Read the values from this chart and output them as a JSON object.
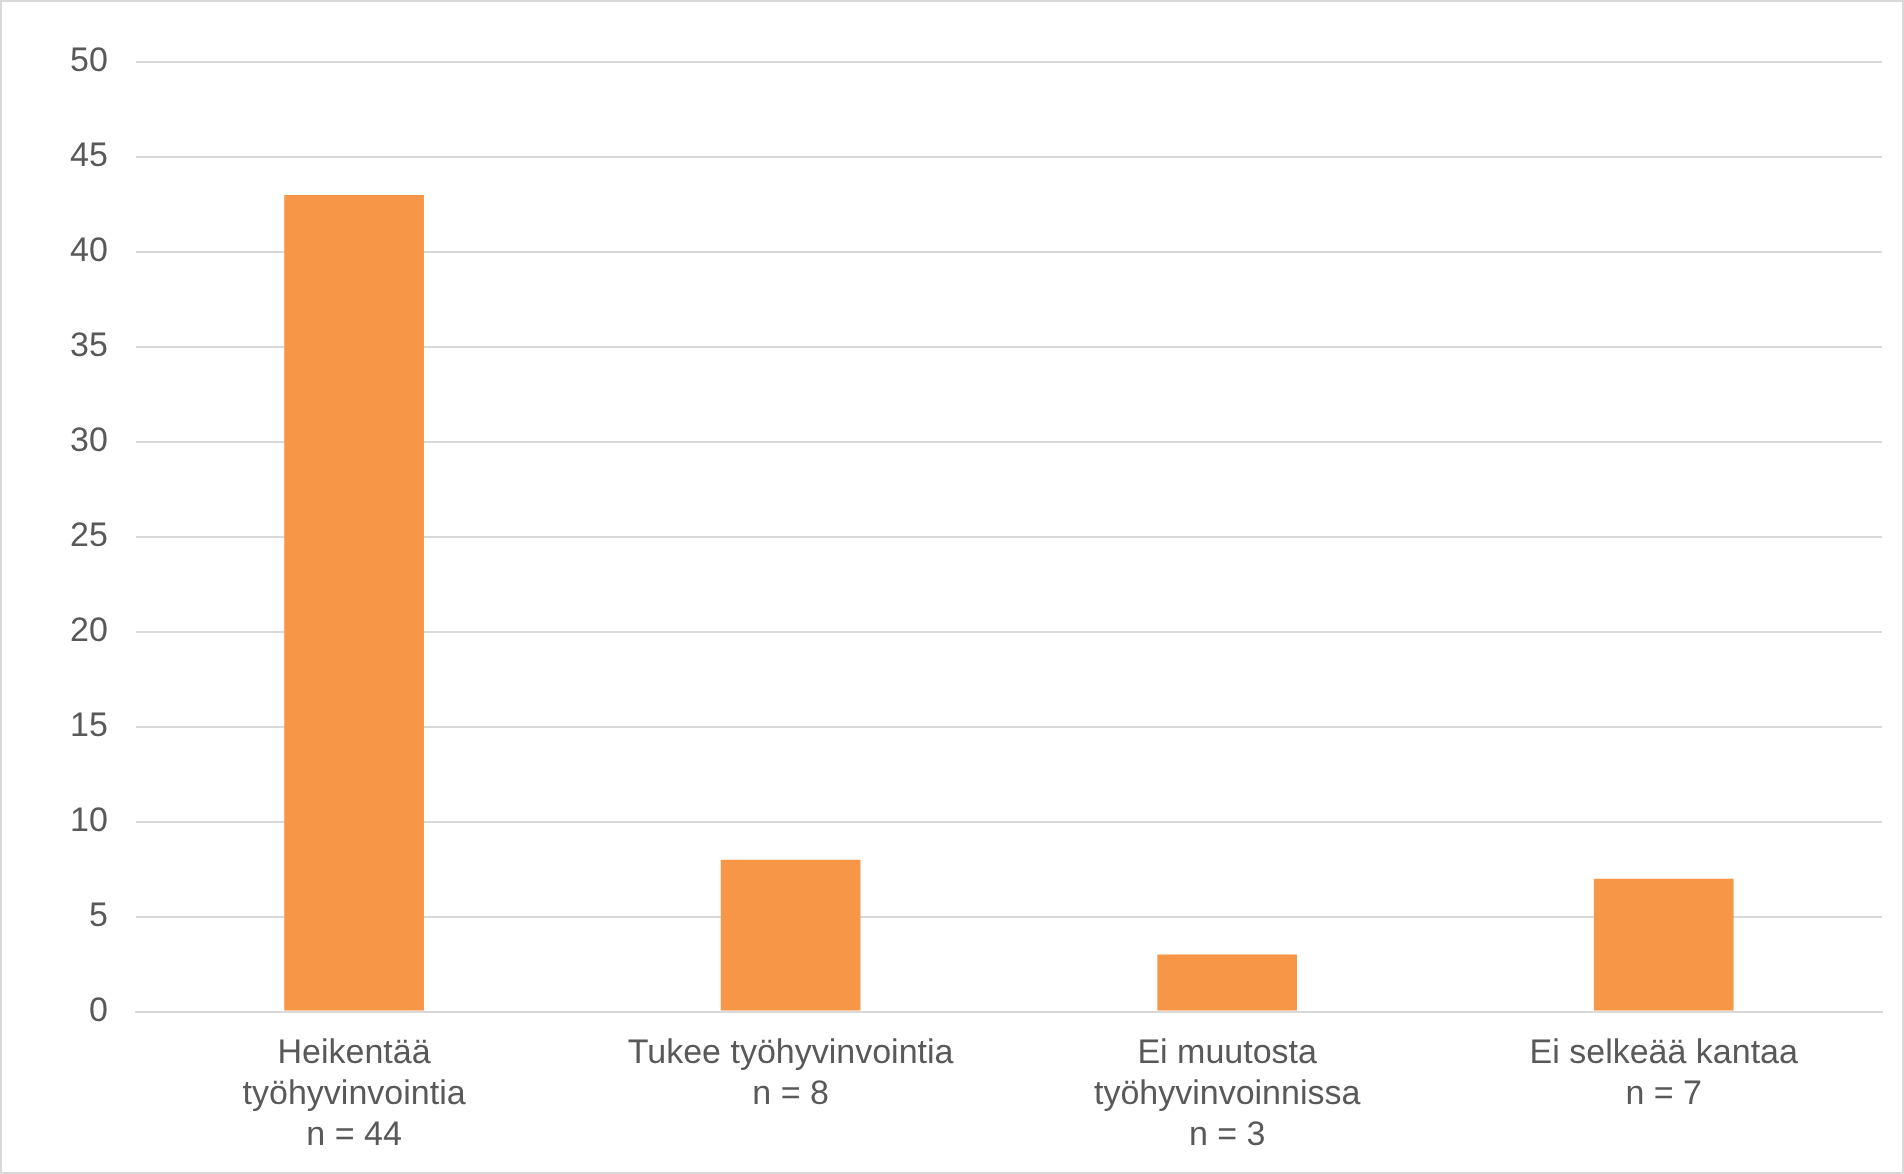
{
  "chart_data": {
    "type": "bar",
    "categories": [
      "Heikentää\ntyöhyvinvointia\nn = 44",
      "Tukee työhyvinvointia\nn = 8",
      "Ei muutosta\ntyöhyvinvoinnissa\nn = 3",
      "Ei selkeää kantaa\nn = 7"
    ],
    "values": [
      43,
      8,
      3,
      7
    ],
    "color": "#f79646",
    "ylim": [
      0,
      50
    ],
    "yticks": [
      0,
      5,
      10,
      15,
      20,
      25,
      30,
      35,
      40,
      45,
      50
    ],
    "grid": "y"
  }
}
